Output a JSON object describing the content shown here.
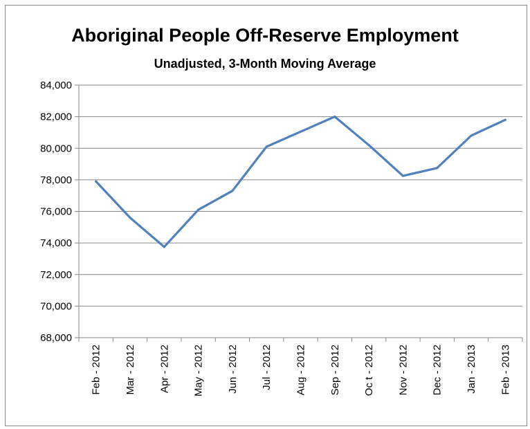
{
  "chart_data": {
    "type": "line",
    "title": "Aboriginal People Off-Reserve Employment",
    "subtitle": "Unadjusted, 3-Month Moving Average",
    "xlabel": "",
    "ylabel": "",
    "categories": [
      "Feb - 2012",
      "Mar - 2012",
      "Apr - 2012",
      "May - 2012",
      "Jun - 2012",
      "Jul - 2012",
      "Aug - 2012",
      "Sep - 2012",
      "Oc t - 2012",
      "Nov - 2012",
      "Dec - 2012",
      "Jan - 2013",
      "Feb - 2013"
    ],
    "series": [
      {
        "values": [
          77900,
          75600,
          73750,
          76100,
          77300,
          80100,
          81050,
          82000,
          80200,
          78250,
          78750,
          80800,
          81800
        ]
      }
    ],
    "ylim": [
      68000,
      84000
    ],
    "yticks": [
      84000,
      82000,
      80000,
      78000,
      76000,
      74000,
      72000,
      70000,
      68000
    ],
    "ytick_labels": [
      "84,000",
      "82,000",
      "80,000",
      "78,000",
      "76,000",
      "74,000",
      "72,000",
      "70,000",
      "68,000"
    ],
    "grid": true,
    "legend": "none",
    "line_color": "#4f81bd"
  }
}
